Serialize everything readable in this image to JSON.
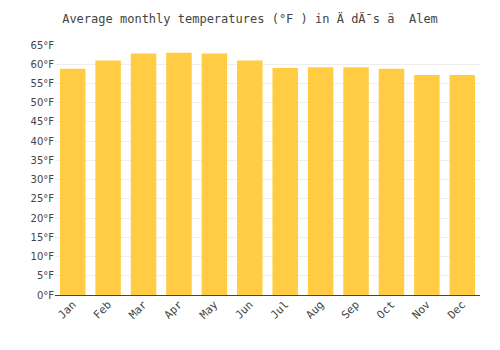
{
  "chart_data": {
    "type": "bar",
    "title": "Average monthly temperatures (°F ) in Ä dÄ¯s ä  Alem",
    "categories": [
      "Jan",
      "Feb",
      "Mar",
      "Apr",
      "May",
      "Jun",
      "Jul",
      "Aug",
      "Sep",
      "Oct",
      "Nov",
      "Dec"
    ],
    "values": [
      58.8,
      61.0,
      62.8,
      63.0,
      62.8,
      61.0,
      59.0,
      59.2,
      59.2,
      58.8,
      57.2,
      57.2
    ],
    "color": "#FFCC44",
    "ylim": [
      0,
      65
    ],
    "yticks": [
      {
        "value": 0,
        "label": "0°F"
      },
      {
        "value": 5,
        "label": "5°F"
      },
      {
        "value": 10,
        "label": "10°F"
      },
      {
        "value": 15,
        "label": "15°F"
      },
      {
        "value": 20,
        "label": "20°F"
      },
      {
        "value": 25,
        "label": "25°F"
      },
      {
        "value": 30,
        "label": "30°F"
      },
      {
        "value": 35,
        "label": "35°F"
      },
      {
        "value": 40,
        "label": "40°F"
      },
      {
        "value": 45,
        "label": "45°F"
      },
      {
        "value": 50,
        "label": "50°F"
      },
      {
        "value": 55,
        "label": "55°F"
      },
      {
        "value": 60,
        "label": "60°F"
      },
      {
        "value": 65,
        "label": "65°F"
      }
    ],
    "grid": true
  }
}
